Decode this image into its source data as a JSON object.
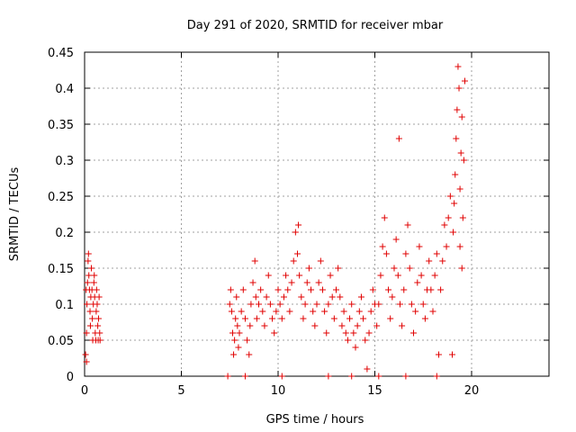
{
  "chart_data": {
    "type": "scatter",
    "title": "Day 291 of 2020, SRMTID for receiver mbar",
    "xlabel": "GPS time / hours",
    "ylabel": "SRMTID / TECUs",
    "xlim": [
      0,
      24
    ],
    "ylim": [
      0,
      0.45
    ],
    "xticks": [
      0,
      5,
      10,
      15,
      20
    ],
    "yticks": [
      0,
      0.05,
      0.1,
      0.15,
      0.2,
      0.25,
      0.3,
      0.35,
      0.4,
      0.45
    ],
    "xtick_labels": [
      "0",
      "5",
      "10",
      "15",
      "20"
    ],
    "ytick_labels": [
      "0",
      "0.05",
      "0.1",
      "0.15",
      "0.2",
      "0.25",
      "0.3",
      "0.35",
      "0.4",
      "0.45"
    ],
    "grid": true,
    "marker": "+",
    "color": "#e00000",
    "series": [
      {
        "name": "SRMTID",
        "points": [
          [
            0.05,
            0.03
          ],
          [
            0.1,
            0.06
          ],
          [
            0.12,
            0.1
          ],
          [
            0.15,
            0.13
          ],
          [
            0.18,
            0.16
          ],
          [
            0.2,
            0.17
          ],
          [
            0.22,
            0.14
          ],
          [
            0.25,
            0.12
          ],
          [
            0.28,
            0.09
          ],
          [
            0.3,
            0.07
          ],
          [
            0.32,
            0.11
          ],
          [
            0.35,
            0.15
          ],
          [
            0.38,
            0.12
          ],
          [
            0.4,
            0.08
          ],
          [
            0.42,
            0.05
          ],
          [
            0.45,
            0.1
          ],
          [
            0.48,
            0.13
          ],
          [
            0.5,
            0.14
          ],
          [
            0.52,
            0.11
          ],
          [
            0.55,
            0.06
          ],
          [
            0.58,
            0.05
          ],
          [
            0.6,
            0.09
          ],
          [
            0.62,
            0.12
          ],
          [
            0.65,
            0.1
          ],
          [
            0.68,
            0.07
          ],
          [
            0.7,
            0.05
          ],
          [
            0.72,
            0.08
          ],
          [
            0.75,
            0.11
          ],
          [
            0.78,
            0.06
          ],
          [
            0.8,
            0.05
          ],
          [
            0.1,
            0.02
          ],
          [
            0.08,
            0.12
          ],
          [
            7.5,
            0.1
          ],
          [
            7.55,
            0.12
          ],
          [
            7.6,
            0.09
          ],
          [
            7.65,
            0.06
          ],
          [
            7.7,
            0.03
          ],
          [
            7.75,
            0.05
          ],
          [
            7.8,
            0.08
          ],
          [
            7.85,
            0.11
          ],
          [
            7.9,
            0.07
          ],
          [
            7.95,
            0.04
          ],
          [
            8.0,
            0.06
          ],
          [
            8.1,
            0.09
          ],
          [
            8.2,
            0.12
          ],
          [
            8.3,
            0.08
          ],
          [
            8.4,
            0.05
          ],
          [
            8.5,
            0.03
          ],
          [
            8.55,
            0.07
          ],
          [
            8.6,
            0.1
          ],
          [
            8.7,
            0.13
          ],
          [
            8.8,
            0.16
          ],
          [
            8.85,
            0.11
          ],
          [
            8.9,
            0.08
          ],
          [
            9.0,
            0.1
          ],
          [
            9.1,
            0.12
          ],
          [
            9.2,
            0.09
          ],
          [
            9.3,
            0.07
          ],
          [
            9.4,
            0.11
          ],
          [
            9.5,
            0.14
          ],
          [
            9.6,
            0.1
          ],
          [
            9.7,
            0.08
          ],
          [
            9.8,
            0.06
          ],
          [
            9.9,
            0.09
          ],
          [
            10.0,
            0.12
          ],
          [
            10.1,
            0.1
          ],
          [
            10.2,
            0.08
          ],
          [
            10.3,
            0.11
          ],
          [
            10.4,
            0.14
          ],
          [
            10.5,
            0.12
          ],
          [
            10.6,
            0.09
          ],
          [
            10.7,
            0.13
          ],
          [
            10.8,
            0.16
          ],
          [
            10.9,
            0.2
          ],
          [
            11.0,
            0.17
          ],
          [
            11.05,
            0.21
          ],
          [
            11.1,
            0.14
          ],
          [
            11.2,
            0.11
          ],
          [
            11.3,
            0.08
          ],
          [
            11.4,
            0.1
          ],
          [
            11.5,
            0.13
          ],
          [
            11.6,
            0.15
          ],
          [
            11.7,
            0.12
          ],
          [
            11.8,
            0.09
          ],
          [
            11.9,
            0.07
          ],
          [
            12.0,
            0.1
          ],
          [
            12.1,
            0.13
          ],
          [
            12.2,
            0.16
          ],
          [
            12.3,
            0.12
          ],
          [
            12.4,
            0.09
          ],
          [
            12.5,
            0.06
          ],
          [
            12.6,
            0.1
          ],
          [
            12.7,
            0.14
          ],
          [
            12.8,
            0.11
          ],
          [
            12.9,
            0.08
          ],
          [
            13.0,
            0.12
          ],
          [
            13.1,
            0.15
          ],
          [
            13.2,
            0.11
          ],
          [
            13.3,
            0.07
          ],
          [
            13.4,
            0.09
          ],
          [
            13.5,
            0.06
          ],
          [
            13.6,
            0.05
          ],
          [
            13.7,
            0.08
          ],
          [
            13.8,
            0.1
          ],
          [
            13.9,
            0.06
          ],
          [
            14.0,
            0.04
          ],
          [
            14.1,
            0.07
          ],
          [
            14.2,
            0.09
          ],
          [
            14.3,
            0.11
          ],
          [
            14.4,
            0.08
          ],
          [
            14.5,
            0.05
          ],
          [
            14.6,
            0.01
          ],
          [
            14.7,
            0.06
          ],
          [
            14.8,
            0.09
          ],
          [
            14.9,
            0.12
          ],
          [
            15.0,
            0.1
          ],
          [
            15.1,
            0.07
          ],
          [
            15.2,
            0.1
          ],
          [
            15.3,
            0.14
          ],
          [
            15.4,
            0.18
          ],
          [
            15.5,
            0.22
          ],
          [
            15.6,
            0.17
          ],
          [
            15.7,
            0.12
          ],
          [
            15.8,
            0.08
          ],
          [
            15.9,
            0.11
          ],
          [
            16.0,
            0.15
          ],
          [
            16.1,
            0.19
          ],
          [
            16.2,
            0.14
          ],
          [
            16.25,
            0.33
          ],
          [
            16.3,
            0.1
          ],
          [
            16.4,
            0.07
          ],
          [
            16.5,
            0.12
          ],
          [
            16.6,
            0.17
          ],
          [
            16.7,
            0.21
          ],
          [
            16.8,
            0.15
          ],
          [
            16.9,
            0.1
          ],
          [
            17.0,
            0.06
          ],
          [
            17.1,
            0.09
          ],
          [
            17.2,
            0.13
          ],
          [
            17.3,
            0.18
          ],
          [
            17.4,
            0.14
          ],
          [
            17.5,
            0.1
          ],
          [
            17.6,
            0.08
          ],
          [
            17.7,
            0.12
          ],
          [
            17.8,
            0.16
          ],
          [
            17.9,
            0.12
          ],
          [
            18.0,
            0.09
          ],
          [
            18.1,
            0.14
          ],
          [
            18.2,
            0.17
          ],
          [
            18.3,
            0.03
          ],
          [
            18.4,
            0.12
          ],
          [
            18.5,
            0.16
          ],
          [
            18.6,
            0.21
          ],
          [
            18.7,
            0.18
          ],
          [
            18.8,
            0.22
          ],
          [
            18.9,
            0.25
          ],
          [
            19.0,
            0.03
          ],
          [
            19.05,
            0.2
          ],
          [
            19.1,
            0.24
          ],
          [
            19.15,
            0.28
          ],
          [
            19.2,
            0.33
          ],
          [
            19.25,
            0.37
          ],
          [
            19.3,
            0.43
          ],
          [
            19.35,
            0.4
          ],
          [
            19.4,
            0.26
          ],
          [
            19.45,
            0.31
          ],
          [
            19.5,
            0.36
          ],
          [
            19.55,
            0.22
          ],
          [
            19.6,
            0.3
          ],
          [
            19.65,
            0.41
          ],
          [
            19.4,
            0.18
          ],
          [
            19.5,
            0.15
          ],
          [
            7.4,
            0.0
          ],
          [
            8.3,
            0.0
          ],
          [
            10.2,
            0.0
          ],
          [
            12.6,
            0.0
          ],
          [
            13.8,
            0.0
          ],
          [
            15.2,
            0.0
          ],
          [
            16.6,
            0.0
          ],
          [
            18.2,
            0.0
          ]
        ]
      }
    ]
  }
}
